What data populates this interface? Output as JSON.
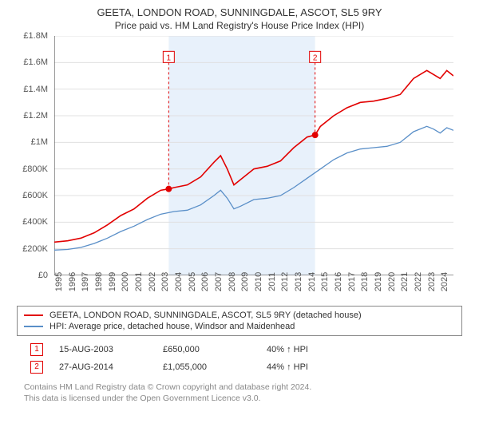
{
  "title_line1": "GEETA, LONDON ROAD, SUNNINGDALE, ASCOT, SL5 9RY",
  "title_line2": "Price paid vs. HM Land Registry's House Price Index (HPI)",
  "chart": {
    "type": "line",
    "background_color": "#ffffff",
    "band_color": "#e8f1fb",
    "grid_color": "#e0e0e0",
    "axis_color": "#333333",
    "ylim": [
      0,
      1800000
    ],
    "ytick_step": 200000,
    "yticks": [
      "£0",
      "£200K",
      "£400K",
      "£600K",
      "£800K",
      "£1M",
      "£1.2M",
      "£1.4M",
      "£1.6M",
      "£1.8M"
    ],
    "xlim": [
      1995,
      2025
    ],
    "xticks": [
      "1995",
      "1996",
      "1997",
      "1998",
      "1999",
      "2000",
      "2001",
      "2002",
      "2003",
      "2004",
      "2005",
      "2006",
      "2007",
      "2008",
      "2009",
      "2010",
      "2011",
      "2012",
      "2013",
      "2014",
      "2015",
      "2016",
      "2017",
      "2018",
      "2019",
      "2020",
      "2021",
      "2022",
      "2023",
      "2024"
    ],
    "band_x": [
      2003.6,
      2014.6
    ],
    "series": [
      {
        "name": "property",
        "color": "#e20000",
        "width": 1.6,
        "data": [
          [
            1995,
            250000
          ],
          [
            1996,
            260000
          ],
          [
            1997,
            280000
          ],
          [
            1998,
            320000
          ],
          [
            1999,
            380000
          ],
          [
            2000,
            450000
          ],
          [
            2001,
            500000
          ],
          [
            2002,
            580000
          ],
          [
            2003,
            640000
          ],
          [
            2003.6,
            650000
          ],
          [
            2004,
            660000
          ],
          [
            2005,
            680000
          ],
          [
            2006,
            740000
          ],
          [
            2007,
            850000
          ],
          [
            2007.5,
            900000
          ],
          [
            2008,
            800000
          ],
          [
            2008.5,
            680000
          ],
          [
            2009,
            720000
          ],
          [
            2010,
            800000
          ],
          [
            2011,
            820000
          ],
          [
            2012,
            860000
          ],
          [
            2013,
            960000
          ],
          [
            2014,
            1040000
          ],
          [
            2014.6,
            1055000
          ],
          [
            2015,
            1120000
          ],
          [
            2016,
            1200000
          ],
          [
            2017,
            1260000
          ],
          [
            2018,
            1300000
          ],
          [
            2019,
            1310000
          ],
          [
            2020,
            1330000
          ],
          [
            2021,
            1360000
          ],
          [
            2022,
            1480000
          ],
          [
            2023,
            1540000
          ],
          [
            2023.5,
            1510000
          ],
          [
            2024,
            1480000
          ],
          [
            2024.5,
            1540000
          ],
          [
            2025,
            1500000
          ]
        ]
      },
      {
        "name": "hpi",
        "color": "#5a8fc8",
        "width": 1.3,
        "data": [
          [
            1995,
            190000
          ],
          [
            1996,
            195000
          ],
          [
            1997,
            210000
          ],
          [
            1998,
            240000
          ],
          [
            1999,
            280000
          ],
          [
            2000,
            330000
          ],
          [
            2001,
            370000
          ],
          [
            2002,
            420000
          ],
          [
            2003,
            460000
          ],
          [
            2004,
            480000
          ],
          [
            2005,
            490000
          ],
          [
            2006,
            530000
          ],
          [
            2007,
            600000
          ],
          [
            2007.5,
            640000
          ],
          [
            2008,
            580000
          ],
          [
            2008.5,
            500000
          ],
          [
            2009,
            520000
          ],
          [
            2010,
            570000
          ],
          [
            2011,
            580000
          ],
          [
            2012,
            600000
          ],
          [
            2013,
            660000
          ],
          [
            2014,
            730000
          ],
          [
            2015,
            800000
          ],
          [
            2016,
            870000
          ],
          [
            2017,
            920000
          ],
          [
            2018,
            950000
          ],
          [
            2019,
            960000
          ],
          [
            2020,
            970000
          ],
          [
            2021,
            1000000
          ],
          [
            2022,
            1080000
          ],
          [
            2023,
            1120000
          ],
          [
            2023.5,
            1100000
          ],
          [
            2024,
            1070000
          ],
          [
            2024.5,
            1110000
          ],
          [
            2025,
            1090000
          ]
        ]
      }
    ],
    "markers": [
      {
        "label": "1",
        "x": 2003.6,
        "y": 650000,
        "pin_y": 1600000,
        "color": "#e20000"
      },
      {
        "label": "2",
        "x": 2014.6,
        "y": 1055000,
        "pin_y": 1600000,
        "color": "#e20000"
      }
    ]
  },
  "legend": {
    "border_color": "#888888",
    "items": [
      {
        "color": "#e20000",
        "label": "GEETA, LONDON ROAD, SUNNINGDALE, ASCOT, SL5 9RY (detached house)"
      },
      {
        "color": "#5a8fc8",
        "label": "HPI: Average price, detached house, Windsor and Maidenhead"
      }
    ]
  },
  "transactions": [
    {
      "num": "1",
      "color": "#e20000",
      "date": "15-AUG-2003",
      "price": "£650,000",
      "pct": "40% ↑ HPI"
    },
    {
      "num": "2",
      "color": "#e20000",
      "date": "27-AUG-2014",
      "price": "£1,055,000",
      "pct": "44% ↑ HPI"
    }
  ],
  "footer_line1": "Contains HM Land Registry data © Crown copyright and database right 2024.",
  "footer_line2": "This data is licensed under the Open Government Licence v3.0."
}
